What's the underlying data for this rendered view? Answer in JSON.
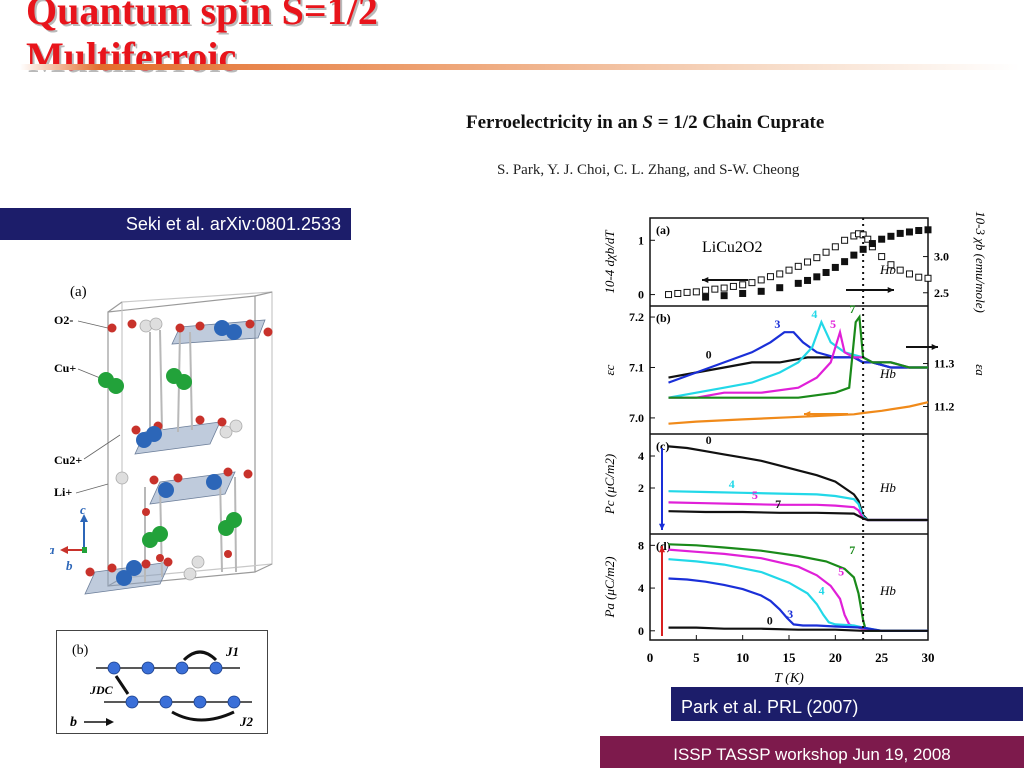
{
  "slide": {
    "title_line1": "Quantum spin S=1/2",
    "title_line2": "Multiferroic",
    "paper_title_prefix": "Ferroelectricity in an ",
    "paper_title_s": "S",
    "paper_title_eq": " = 1/2",
    "paper_title_suffix": " Chain Cuprate",
    "paper_authors": "S. Park, Y. J. Choi, C. L. Zhang, and S-W. Cheong",
    "ref_seki": "Seki et al. arXiv:0801.2533",
    "ref_park": "Park et al. PRL (2007)",
    "footer": "ISSP TASSP workshop  Jun 19, 2008"
  },
  "crystal_figure": {
    "panel_label": "(a)",
    "atom_labels": [
      "O2-",
      "Cu+",
      "Cu2+",
      "Li+"
    ],
    "axis_labels": [
      "c",
      "a",
      "b"
    ],
    "colors": {
      "oxygen": "#c8322b",
      "cu1": "#22a23a",
      "cu2": "#2c66b8",
      "li": "#dedede"
    }
  },
  "chain_figure": {
    "panel_label": "(b)",
    "labels": [
      "J1",
      "JDC",
      "J2",
      "b"
    ]
  },
  "chart_data": {
    "type": "line",
    "xlabel": "T (K)",
    "xlim": [
      0,
      30
    ],
    "x_ticks": [
      "0",
      "5",
      "10",
      "15",
      "20",
      "25",
      "30"
    ],
    "transition_T": 23,
    "panels": [
      {
        "label": "(a)",
        "compound": "LiCu2O2",
        "field": "Hb",
        "ylabel_left": "10-4 dχb/dT",
        "ylabel_right": "10-3 χb (emu/mole)",
        "ylim_left": [
          -0.1,
          1.3
        ],
        "yticks_left": [
          "0",
          "1"
        ],
        "ylim_right": [
          2.4,
          3.45
        ],
        "yticks_right": [
          "2.5",
          "3.0"
        ],
        "series": [
          {
            "name": "dχb/dT",
            "marker": "open-square",
            "axis": "left",
            "x": [
              2,
              3,
              4,
              5,
              6,
              7,
              8,
              9,
              10,
              11,
              12,
              13,
              14,
              15,
              16,
              17,
              18,
              19,
              20,
              21,
              22,
              22.5,
              23,
              23.5,
              24,
              25,
              26,
              27,
              28,
              29,
              30
            ],
            "y": [
              0.0,
              0.02,
              0.04,
              0.05,
              0.08,
              0.1,
              0.12,
              0.15,
              0.18,
              0.22,
              0.27,
              0.33,
              0.38,
              0.45,
              0.52,
              0.6,
              0.68,
              0.78,
              0.88,
              1.0,
              1.08,
              1.12,
              1.1,
              1.02,
              0.88,
              0.7,
              0.55,
              0.45,
              0.38,
              0.32,
              0.3
            ]
          },
          {
            "name": "χb",
            "marker": "filled-square",
            "axis": "right",
            "x": [
              6,
              8,
              10,
              12,
              14,
              16,
              17,
              18,
              19,
              20,
              21,
              22,
              23,
              24,
              25,
              26,
              27,
              28,
              29,
              30
            ],
            "y": [
              2.44,
              2.46,
              2.49,
              2.52,
              2.57,
              2.63,
              2.67,
              2.72,
              2.78,
              2.85,
              2.93,
              3.02,
              3.1,
              3.18,
              3.24,
              3.28,
              3.32,
              3.34,
              3.36,
              3.37
            ]
          }
        ]
      },
      {
        "label": "(b)",
        "field": "Hb",
        "ylabel_left": "εc",
        "ylabel_right": "εa",
        "ylim_left": [
          6.98,
          7.21
        ],
        "yticks_left": [
          "7.0",
          "7.1",
          "7.2"
        ],
        "ylim_right": [
          11.15,
          11.42
        ],
        "yticks_right": [
          "11.2",
          "11.3"
        ],
        "series": [
          {
            "name": "0",
            "color": "#111111",
            "axis": "left",
            "x": [
              2,
              5,
              8,
              11,
              14,
              17,
              20,
              22,
              23,
              24,
              26,
              28,
              30
            ],
            "y": [
              7.08,
              7.09,
              7.1,
              7.11,
              7.11,
              7.12,
              7.12,
              7.12,
              7.11,
              7.11,
              7.1,
              7.1,
              7.1
            ]
          },
          {
            "name": "3",
            "color": "#1a2fd8",
            "axis": "left",
            "x": [
              2,
              5,
              8,
              11,
              13,
              14.5,
              15.5,
              16.5,
              18,
              20,
              22,
              23,
              24,
              26,
              28,
              30
            ],
            "y": [
              7.07,
              7.09,
              7.11,
              7.13,
              7.15,
              7.17,
              7.17,
              7.15,
              7.13,
              7.12,
              7.12,
              7.11,
              7.11,
              7.1,
              7.1,
              7.1
            ]
          },
          {
            "name": "4",
            "color": "#22d8e8",
            "axis": "left",
            "x": [
              2,
              5,
              8,
              11,
              14,
              16,
              17.5,
              18.5,
              19.5,
              21,
              23,
              24,
              26,
              28,
              30
            ],
            "y": [
              7.04,
              7.05,
              7.06,
              7.07,
              7.09,
              7.11,
              7.14,
              7.19,
              7.15,
              7.13,
              7.12,
              7.11,
              7.11,
              7.1,
              7.1
            ]
          },
          {
            "name": "5",
            "color": "#e020d8",
            "axis": "left",
            "x": [
              2,
              5,
              8,
              12,
              16,
              18,
              19.5,
              20.5,
              21,
              22,
              23,
              24,
              26,
              28,
              30
            ],
            "y": [
              7.04,
              7.04,
              7.05,
              7.05,
              7.06,
              7.08,
              7.11,
              7.17,
              7.13,
              7.12,
              7.12,
              7.11,
              7.11,
              7.1,
              7.1
            ]
          },
          {
            "name": "7",
            "color": "#1a8a1a",
            "axis": "left",
            "x": [
              2,
              5,
              8,
              12,
              16,
              20,
              21.5,
              22.2,
              22.6,
              23,
              24,
              26,
              28,
              30
            ],
            "y": [
              7.04,
              7.04,
              7.04,
              7.04,
              7.04,
              7.05,
              7.06,
              7.19,
              7.2,
              7.12,
              7.11,
              7.11,
              7.1,
              7.1
            ]
          },
          {
            "name": "εa",
            "color": "#f08a1a",
            "axis": "right",
            "x": [
              2,
              5,
              10,
              15,
              20,
              22,
              23,
              25,
              28,
              30
            ],
            "y": [
              11.16,
              11.165,
              11.17,
              11.175,
              11.18,
              11.182,
              11.185,
              11.19,
              11.2,
              11.21
            ]
          }
        ]
      },
      {
        "label": "(c)",
        "field": "Hb",
        "ylabel_left": "Pc (μC/m2)",
        "ylim_left": [
          -0.5,
          5
        ],
        "yticks_left": [
          "2",
          "4"
        ],
        "series": [
          {
            "name": "0",
            "color": "#111111",
            "x": [
              2,
              4,
              6,
              8,
              10,
              12,
              14,
              16,
              18,
              20,
              21,
              22,
              22.5,
              23,
              23.5,
              25,
              28,
              30
            ],
            "y": [
              4.6,
              4.5,
              4.3,
              4.1,
              3.9,
              3.7,
              3.4,
              3.1,
              2.8,
              2.4,
              2.0,
              1.6,
              1.2,
              0.3,
              0.0,
              0.0,
              0.0,
              0.0
            ]
          },
          {
            "name": "4",
            "color": "#22d8e8",
            "x": [
              2,
              6,
              10,
              14,
              18,
              20,
              22,
              22.5,
              23,
              23.5,
              25,
              30
            ],
            "y": [
              1.8,
              1.75,
              1.7,
              1.65,
              1.6,
              1.5,
              1.3,
              1.0,
              0.2,
              0.0,
              0.0,
              0.0
            ]
          },
          {
            "name": "5",
            "color": "#e020d8",
            "x": [
              2,
              6,
              10,
              14,
              18,
              20,
              22,
              22.5,
              23,
              23.5,
              25,
              30
            ],
            "y": [
              1.1,
              1.05,
              1.0,
              0.95,
              0.95,
              0.9,
              0.8,
              0.6,
              0.1,
              0.0,
              0.0,
              0.0
            ]
          },
          {
            "name": "7",
            "color": "#111111",
            "x": [
              2,
              6,
              10,
              14,
              18,
              22,
              23,
              23.5,
              25,
              30
            ],
            "y": [
              0.55,
              0.5,
              0.5,
              0.45,
              0.45,
              0.4,
              0.1,
              0.0,
              0.0,
              0.0
            ]
          }
        ]
      },
      {
        "label": "(d)",
        "field": "Hb",
        "ylabel_left": "Pa (μC/m2)",
        "ylim_left": [
          -0.3,
          8.5
        ],
        "yticks_left": [
          "0",
          "4",
          "8"
        ],
        "series": [
          {
            "name": "7",
            "color": "#1a8a1a",
            "x": [
              2,
              5,
              8,
              12,
              16,
              19,
              21,
              22,
              22.5,
              23,
              23.3,
              25,
              30
            ],
            "y": [
              8.1,
              8.0,
              7.8,
              7.5,
              7.0,
              6.5,
              5.8,
              5.0,
              3.5,
              1.0,
              0.0,
              0.0,
              0.0
            ]
          },
          {
            "name": "5",
            "color": "#e020d8",
            "x": [
              2,
              5,
              8,
              12,
              16,
              18,
              19.5,
              20.5,
              21,
              21.5,
              22,
              23,
              25,
              30
            ],
            "y": [
              7.6,
              7.4,
              7.2,
              6.8,
              6.0,
              5.2,
              4.2,
              3.0,
              1.5,
              0.6,
              0.4,
              0.2,
              0.0,
              0.0
            ]
          },
          {
            "name": "4",
            "color": "#22d8e8",
            "x": [
              2,
              5,
              8,
              12,
              15,
              17,
              18,
              18.7,
              19.3,
              20,
              22,
              23,
              25,
              30
            ],
            "y": [
              6.7,
              6.5,
              6.2,
              5.5,
              4.5,
              3.5,
              2.5,
              1.5,
              0.8,
              0.6,
              0.5,
              0.3,
              0.0,
              0.0
            ]
          },
          {
            "name": "3",
            "color": "#1a2fd8",
            "x": [
              2,
              4,
              6,
              8,
              10,
              12,
              13,
              14,
              14.8,
              15.5,
              16.5,
              18,
              20,
              23,
              25,
              30
            ],
            "y": [
              4.9,
              4.8,
              4.6,
              4.3,
              3.9,
              3.3,
              2.8,
              2.0,
              1.2,
              0.6,
              0.5,
              0.5,
              0.4,
              0.3,
              0.0,
              0.0
            ]
          },
          {
            "name": "0",
            "color": "#111111",
            "x": [
              2,
              5,
              8,
              12,
              16,
              20,
              23,
              23.5,
              25,
              30
            ],
            "y": [
              0.3,
              0.3,
              0.2,
              0.2,
              0.1,
              0.1,
              0.0,
              0.0,
              0.0,
              0.0
            ]
          }
        ]
      }
    ]
  }
}
